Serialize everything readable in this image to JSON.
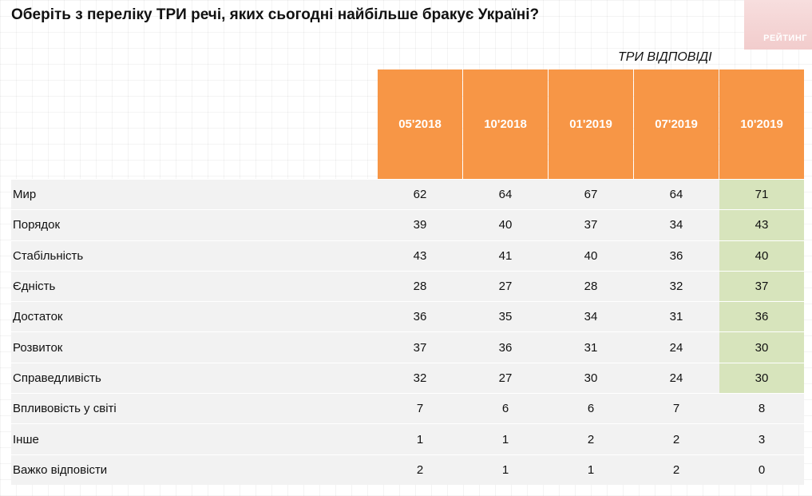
{
  "title": "Оберіть з переліку ТРИ речі, яких сьогодні найбільше бракує Україні?",
  "logo_text": "РЕЙТИНГ",
  "subtitle": "ТРИ ВІДПОВІДІ",
  "colors": {
    "header": "#f79646",
    "highlight": "#d7e4bc",
    "row": "#f2f2f2"
  },
  "chart_data": {
    "type": "table",
    "columns": [
      "05'2018",
      "10'2018",
      "01'2019",
      "07'2019",
      "10'2019"
    ],
    "highlight_column": 4,
    "highlight_rows": 7,
    "rows": [
      {
        "label": "Мир",
        "values": [
          "62",
          "64",
          "67",
          "64",
          "71"
        ]
      },
      {
        "label": "Порядок",
        "values": [
          "39",
          "40",
          "37",
          "34",
          "43"
        ]
      },
      {
        "label": "Стабільність",
        "values": [
          "43",
          "41",
          "40",
          "36",
          "40"
        ]
      },
      {
        "label": "Єдність",
        "values": [
          "28",
          "27",
          "28",
          "32",
          "37"
        ]
      },
      {
        "label": "Достаток",
        "values": [
          "36",
          "35",
          "34",
          "31",
          "36"
        ]
      },
      {
        "label": "Розвиток",
        "values": [
          "37",
          "36",
          "31",
          "24",
          "30"
        ]
      },
      {
        "label": "Справедливість",
        "values": [
          "32",
          "27",
          "30",
          "24",
          "30"
        ]
      },
      {
        "label": "Впливовість у світі",
        "values": [
          "7",
          "6",
          "6",
          "7",
          "8"
        ]
      },
      {
        "label": "Інше",
        "values": [
          "1",
          "1",
          "2",
          "2",
          "3"
        ]
      },
      {
        "label": "Важко відповісти",
        "values": [
          "2",
          "1",
          "1",
          "2",
          "0"
        ]
      }
    ]
  }
}
